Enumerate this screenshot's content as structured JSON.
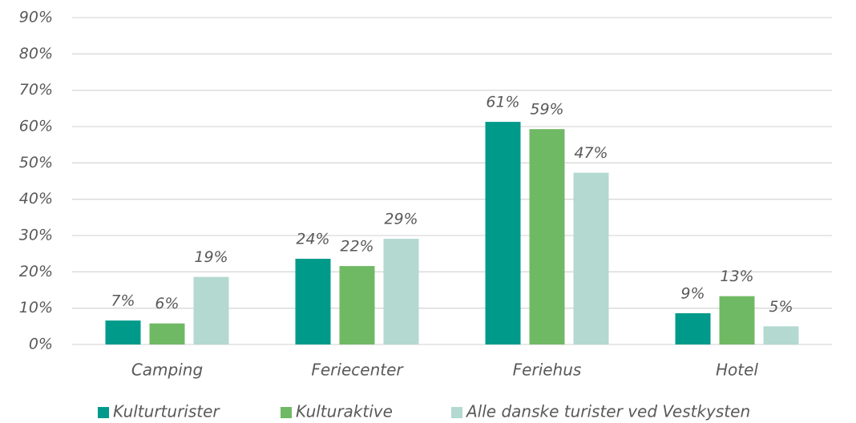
{
  "chart_data": {
    "type": "bar",
    "categories": [
      "Camping",
      "Feriecenter",
      "Feriehus",
      "Hotel"
    ],
    "series": [
      {
        "name": "Kulturturister",
        "color": "#009a8a",
        "values": [
          6.6,
          23.6,
          61.3,
          8.6
        ],
        "value_labels": [
          "7%",
          "24%",
          "61%",
          "9%"
        ]
      },
      {
        "name": "Kulturaktive",
        "color": "#70b964",
        "values": [
          5.8,
          21.6,
          59.3,
          13.3
        ],
        "value_labels": [
          "6%",
          "22%",
          "59%",
          "13%"
        ]
      },
      {
        "name": "Alle danske turister ved Vestkysten",
        "color": "#b3d9d1",
        "values": [
          18.6,
          29.1,
          47.3,
          5.0
        ],
        "value_labels": [
          "19%",
          "29%",
          "47%",
          "5%"
        ]
      }
    ],
    "ylim": [
      0,
      90
    ],
    "yticks": [
      {
        "value": 0,
        "label": "0%"
      },
      {
        "value": 10,
        "label": "10%"
      },
      {
        "value": 20,
        "label": "20%"
      },
      {
        "value": 30,
        "label": "30%"
      },
      {
        "value": 40,
        "label": "40%"
      },
      {
        "value": 50,
        "label": "50%"
      },
      {
        "value": 60,
        "label": "60%"
      },
      {
        "value": 70,
        "label": "70%"
      },
      {
        "value": 80,
        "label": "80%"
      },
      {
        "value": 90,
        "label": "90%"
      }
    ],
    "grid": true,
    "legend": "bottom"
  }
}
